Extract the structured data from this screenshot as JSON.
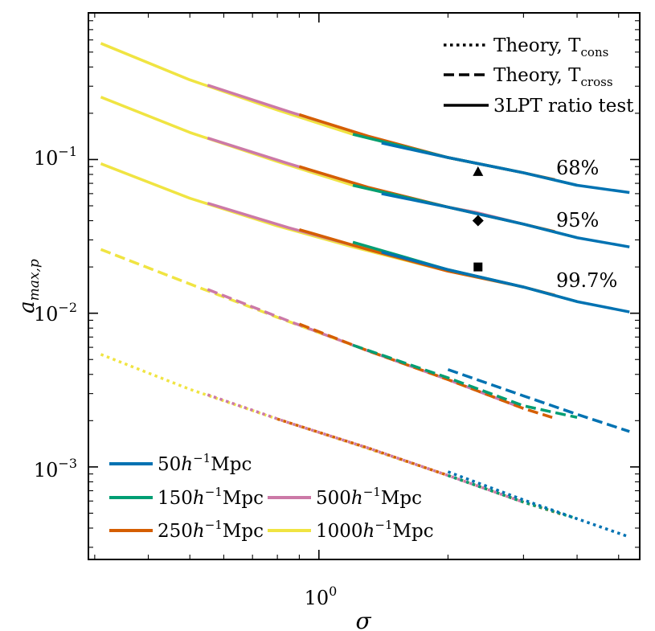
{
  "chart_data": {
    "type": "line",
    "xlabel": "σ",
    "ylabel_main": "a",
    "ylabel_sub": "max,p",
    "xscale": "log",
    "yscale": "log",
    "xlim": [
      0.29,
      5.6
    ],
    "ylim": [
      0.00025,
      0.9
    ],
    "x_tick_labels": [
      {
        "value": 1,
        "base": "10",
        "exp": "0"
      }
    ],
    "y_tick_labels": [
      {
        "value": 0.1,
        "base": "10",
        "exp": "−1"
      },
      {
        "value": 0.01,
        "base": "10",
        "exp": "−2"
      },
      {
        "value": 0.001,
        "base": "10",
        "exp": "−3"
      }
    ],
    "style_legend": {
      "placement": "top-right",
      "items": [
        {
          "style": "dotted",
          "text": "Theory, T",
          "sub": "cons"
        },
        {
          "style": "dashed",
          "text": "Theory, T",
          "sub": "cross"
        },
        {
          "style": "solid",
          "text": "3LPT ratio test",
          "sub": ""
        }
      ]
    },
    "box_legend": {
      "placement": "bottom-left",
      "items": [
        {
          "name": "50",
          "color": "#0072B2"
        },
        {
          "name": "150",
          "color": "#009E73"
        },
        {
          "name": "250",
          "color": "#D55E00"
        },
        {
          "name": "500",
          "color": "#CC79A7"
        },
        {
          "name": "1000",
          "color": "#F0E442"
        }
      ],
      "unit_h": "h",
      "unit_exp": "−1",
      "unit_mpc": "Mpc"
    },
    "annotations": [
      {
        "text": "68%",
        "x": 3.6,
        "y": 0.075
      },
      {
        "text": "95%",
        "x": 3.6,
        "y": 0.033
      },
      {
        "text": "99.7%",
        "x": 3.6,
        "y": 0.013
      }
    ],
    "markers": [
      {
        "shape": "triangle",
        "x": 2.35,
        "y": 0.083
      },
      {
        "shape": "diamond",
        "x": 2.35,
        "y": 0.04
      },
      {
        "shape": "square",
        "x": 2.35,
        "y": 0.02
      }
    ],
    "series": [
      {
        "name": "1000",
        "color": "#F0E442",
        "style": "solid",
        "x": [
          0.31,
          0.5,
          0.8,
          1.2,
          2.0,
          2.35
        ],
        "y": [
          0.57,
          0.33,
          0.21,
          0.146,
          0.103,
          0.094
        ]
      },
      {
        "name": "500",
        "color": "#CC79A7",
        "style": "solid",
        "x": [
          0.55,
          0.85,
          1.3,
          2.0,
          2.35,
          3.0
        ],
        "y": [
          0.305,
          0.205,
          0.142,
          0.103,
          0.094,
          0.082
        ]
      },
      {
        "name": "250",
        "color": "#D55E00",
        "style": "solid",
        "x": [
          0.9,
          1.3,
          2.0,
          3.0,
          3.55
        ],
        "y": [
          0.196,
          0.142,
          0.103,
          0.082,
          0.074
        ]
      },
      {
        "name": "150",
        "color": "#009E73",
        "style": "solid",
        "x": [
          1.2,
          2.0,
          3.0,
          4.0
        ],
        "y": [
          0.146,
          0.103,
          0.082,
          0.068
        ]
      },
      {
        "name": "50",
        "color": "#0072B2",
        "style": "solid",
        "x": [
          1.4,
          2.0,
          3.0,
          4.0,
          5.3
        ],
        "y": [
          0.128,
          0.103,
          0.082,
          0.068,
          0.061
        ]
      },
      {
        "name": "1000",
        "color": "#F0E442",
        "style": "solid",
        "x": [
          0.31,
          0.5,
          0.8,
          1.2,
          2.0,
          2.35
        ],
        "y": [
          0.255,
          0.15,
          0.097,
          0.068,
          0.049,
          0.045
        ]
      },
      {
        "name": "500",
        "color": "#CC79A7",
        "style": "solid",
        "x": [
          0.55,
          0.85,
          1.3,
          2.0,
          2.35,
          3.0
        ],
        "y": [
          0.138,
          0.094,
          0.066,
          0.049,
          0.045,
          0.038
        ]
      },
      {
        "name": "250",
        "color": "#D55E00",
        "style": "solid",
        "x": [
          0.9,
          1.3,
          2.0,
          3.0,
          3.55
        ],
        "y": [
          0.09,
          0.066,
          0.049,
          0.038,
          0.034
        ]
      },
      {
        "name": "150",
        "color": "#009E73",
        "style": "solid",
        "x": [
          1.2,
          2.0,
          3.0,
          4.0
        ],
        "y": [
          0.068,
          0.049,
          0.038,
          0.031
        ]
      },
      {
        "name": "50",
        "color": "#0072B2",
        "style": "solid",
        "x": [
          1.4,
          2.0,
          3.0,
          4.0,
          5.3
        ],
        "y": [
          0.06,
          0.049,
          0.038,
          0.031,
          0.027
        ]
      },
      {
        "name": "1000",
        "color": "#F0E442",
        "style": "solid",
        "x": [
          0.31,
          0.5,
          0.8,
          1.2,
          2.0,
          2.35
        ],
        "y": [
          0.094,
          0.056,
          0.037,
          0.027,
          0.0188,
          0.0173
        ]
      },
      {
        "name": "500",
        "color": "#CC79A7",
        "style": "solid",
        "x": [
          0.55,
          0.85,
          1.3,
          2.0,
          2.35,
          3.0
        ],
        "y": [
          0.052,
          0.036,
          0.026,
          0.0188,
          0.0173,
          0.0148
        ]
      },
      {
        "name": "250",
        "color": "#D55E00",
        "style": "solid",
        "x": [
          0.9,
          1.3,
          2.0,
          3.0,
          3.55
        ],
        "y": [
          0.035,
          0.026,
          0.0188,
          0.0148,
          0.0131
        ]
      },
      {
        "name": "150",
        "color": "#009E73",
        "style": "solid",
        "x": [
          1.2,
          2.0,
          3.0,
          4.0
        ],
        "y": [
          0.029,
          0.0192,
          0.0148,
          0.0119
        ]
      },
      {
        "name": "50",
        "color": "#0072B2",
        "style": "solid",
        "x": [
          1.4,
          2.0,
          3.0,
          4.0,
          5.3
        ],
        "y": [
          0.025,
          0.0192,
          0.0148,
          0.0119,
          0.0102
        ]
      },
      {
        "name": "1000",
        "color": "#F0E442",
        "style": "dashed",
        "x": [
          0.31,
          0.5,
          0.8,
          1.2,
          2.0
        ],
        "y": [
          0.026,
          0.0155,
          0.0094,
          0.0062,
          0.0037
        ]
      },
      {
        "name": "500",
        "color": "#CC79A7",
        "style": "dashed",
        "x": [
          0.55,
          0.85,
          1.3,
          2.0,
          3.0
        ],
        "y": [
          0.0143,
          0.0089,
          0.0057,
          0.0037,
          0.0024
        ]
      },
      {
        "name": "250",
        "color": "#D55E00",
        "style": "dashed",
        "x": [
          0.9,
          1.3,
          2.0,
          3.0,
          3.5
        ],
        "y": [
          0.0085,
          0.0057,
          0.0037,
          0.0024,
          0.0021
        ]
      },
      {
        "name": "150",
        "color": "#009E73",
        "style": "dashed",
        "x": [
          1.2,
          2.0,
          3.0,
          4.0
        ],
        "y": [
          0.0062,
          0.0038,
          0.0025,
          0.0021
        ]
      },
      {
        "name": "50",
        "color": "#0072B2",
        "style": "dashed",
        "x": [
          2.0,
          3.0,
          4.0,
          5.3
        ],
        "y": [
          0.0043,
          0.0029,
          0.0022,
          0.0017
        ]
      },
      {
        "name": "1000",
        "color": "#F0E442",
        "style": "dotted",
        "x": [
          0.31,
          0.5,
          0.8,
          1.2,
          2.0
        ],
        "y": [
          0.0054,
          0.0032,
          0.00205,
          0.00142,
          0.00088
        ]
      },
      {
        "name": "500",
        "color": "#CC79A7",
        "style": "dotted",
        "x": [
          0.55,
          0.85,
          1.3,
          2.0,
          3.0
        ],
        "y": [
          0.00295,
          0.00194,
          0.00133,
          0.00088,
          0.00059
        ]
      },
      {
        "name": "250",
        "color": "#D55E00",
        "style": "dotted",
        "x": [
          0.8,
          1.3,
          2.0,
          3.0,
          3.7
        ],
        "y": [
          0.00205,
          0.00133,
          0.00088,
          0.00059,
          0.00049
        ]
      },
      {
        "name": "150",
        "color": "#009E73",
        "style": "dotted",
        "x": [
          2.0,
          3.0,
          4.0
        ],
        "y": [
          0.00088,
          0.00059,
          0.00046
        ]
      },
      {
        "name": "50",
        "color": "#0072B2",
        "style": "dotted",
        "x": [
          2.0,
          3.0,
          4.0,
          5.3
        ],
        "y": [
          0.00093,
          0.00061,
          0.00046,
          0.00035
        ]
      }
    ]
  }
}
